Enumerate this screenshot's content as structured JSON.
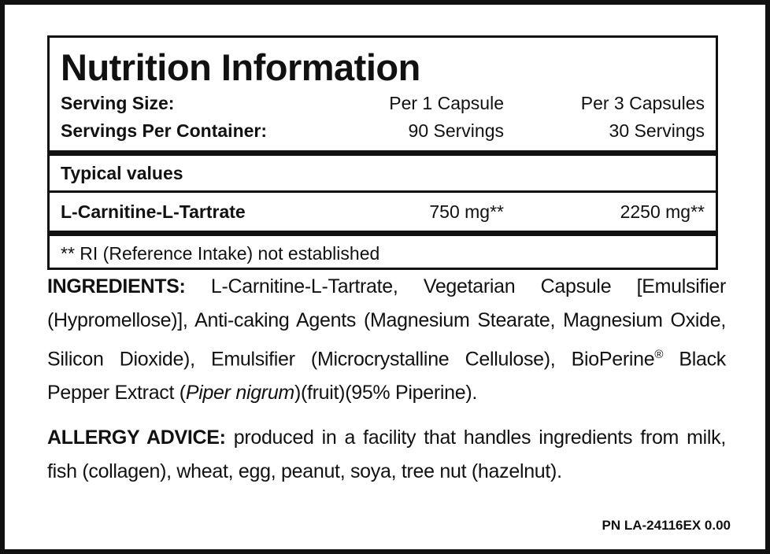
{
  "nutrition": {
    "title": "Nutrition Information",
    "rows": [
      [
        "Serving Size:",
        "Per 1 Capsule",
        "Per 3 Capsules"
      ],
      [
        "Servings Per Container:",
        "90 Servings",
        "30 Servings"
      ]
    ],
    "typical_values": "Typical values",
    "nutrients": [
      [
        "L-Carnitine-L-Tartrate",
        "750 mg**",
        "2250 mg**"
      ]
    ],
    "footnote": "** RI (Reference Intake) not established"
  },
  "ingredients": {
    "heading": "INGREDIENTS:",
    "text": " L-Carnitine-L-Tartrate, Vegetarian Capsule [Emulsifier (Hypromellose)], Anti-caking Agents (Magnesium Stearate, Magnesium Oxide, Silicon Dioxide), Emulsifier (Microcrystalline Cellulose), BioPerine",
    "trademark": "®",
    "text2": " Black Pepper Extract (",
    "italic": "Piper nigrum",
    "text3": ")(fruit)(95% Piperine)."
  },
  "allergy": {
    "heading": "ALLERGY ADVICE:",
    "text": " produced in a facility that handles ingredients from milk, fish (collagen), wheat, egg, peanut, soya, tree nut (hazelnut)."
  },
  "part_number": "PN LA-24116EX 0.00"
}
